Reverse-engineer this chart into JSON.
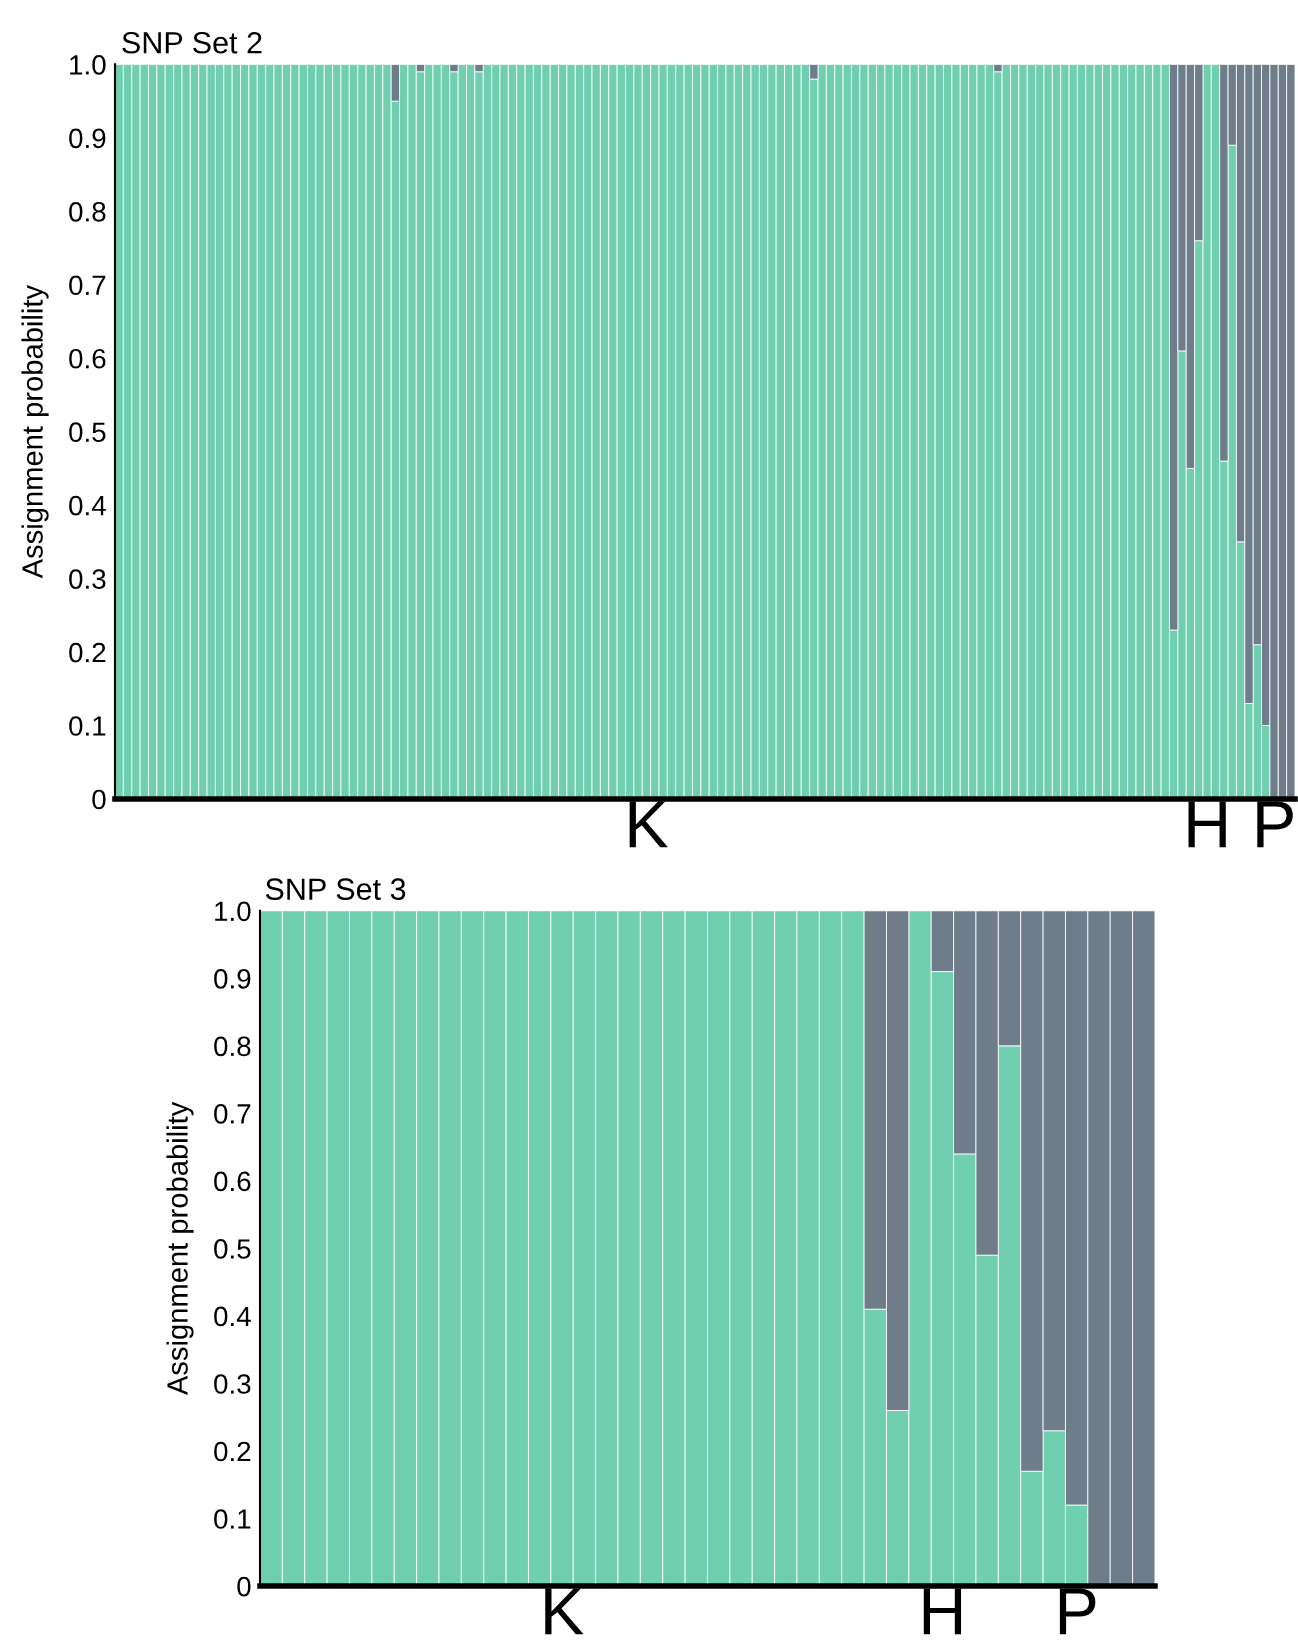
{
  "chart_data": [
    {
      "type": "bar",
      "title": "SNP Set 2",
      "ylabel": "Assignment probability",
      "stacked": true,
      "categories": [
        null,
        null,
        null,
        null,
        null,
        null,
        null,
        null,
        null,
        null,
        null,
        null,
        null,
        null,
        null,
        null,
        null,
        null,
        null,
        null,
        null,
        null,
        null,
        null,
        null,
        null,
        null,
        null,
        null,
        null,
        null,
        null,
        null,
        null,
        null,
        null,
        null,
        null,
        null,
        null,
        null,
        null,
        null,
        null,
        null,
        null,
        null,
        null,
        null,
        null,
        null,
        null,
        null,
        null,
        null,
        null,
        null,
        null,
        null,
        null,
        null,
        null,
        null,
        "K",
        null,
        null,
        null,
        null,
        null,
        null,
        null,
        null,
        null,
        null,
        null,
        null,
        null,
        null,
        null,
        null,
        null,
        null,
        null,
        null,
        null,
        null,
        null,
        null,
        null,
        null,
        null,
        null,
        null,
        null,
        null,
        null,
        null,
        null,
        null,
        null,
        null,
        null,
        null,
        null,
        null,
        null,
        null,
        null,
        null,
        null,
        null,
        null,
        null,
        null,
        null,
        null,
        null,
        null,
        null,
        null,
        null,
        null,
        null,
        null,
        null,
        null,
        null,
        null,
        null,
        null,
        "H",
        null,
        null,
        null,
        null,
        null,
        null,
        null,
        "P",
        null,
        null
      ],
      "series": [
        {
          "color": "#70cfae",
          "values": [
            1,
            1,
            1,
            1,
            1,
            1,
            1,
            1,
            1,
            1,
            1,
            1,
            1,
            1,
            1,
            1,
            1,
            1,
            1,
            1,
            1,
            1,
            1,
            1,
            1,
            1,
            1,
            1,
            1,
            1,
            1,
            1,
            1,
            0.95,
            1,
            1,
            0.99,
            1,
            1,
            1,
            0.99,
            1,
            1,
            0.99,
            1,
            1,
            1,
            1,
            1,
            1,
            1,
            1,
            1,
            1,
            1,
            1,
            1,
            1,
            1,
            1,
            1,
            1,
            1,
            1,
            1,
            1,
            1,
            1,
            1,
            1,
            1,
            1,
            1,
            1,
            1,
            1,
            1,
            1,
            1,
            1,
            1,
            1,
            1,
            0.98,
            1,
            1,
            1,
            1,
            1,
            1,
            1,
            1,
            1,
            1,
            1,
            1,
            1,
            1,
            1,
            1,
            1,
            1,
            1,
            1,
            1,
            0.99,
            1,
            1,
            1,
            1,
            1,
            1,
            1,
            1,
            1,
            1,
            1,
            1,
            1,
            1,
            1,
            1,
            1,
            1,
            1,
            1,
            0.23,
            0.61,
            0.45,
            0.76,
            1,
            1,
            0.46,
            0.89,
            0.35,
            0.13,
            0.21,
            0.1,
            0,
            0,
            0
          ]
        },
        {
          "color": "#6e7d89",
          "values": [
            0,
            0,
            0,
            0,
            0,
            0,
            0,
            0,
            0,
            0,
            0,
            0,
            0,
            0,
            0,
            0,
            0,
            0,
            0,
            0,
            0,
            0,
            0,
            0,
            0,
            0,
            0,
            0,
            0,
            0,
            0,
            0,
            0,
            0.05,
            0,
            0,
            0.01,
            0,
            0,
            0,
            0.01,
            0,
            0,
            0.01,
            0,
            0,
            0,
            0,
            0,
            0,
            0,
            0,
            0,
            0,
            0,
            0,
            0,
            0,
            0,
            0,
            0,
            0,
            0,
            0,
            0,
            0,
            0,
            0,
            0,
            0,
            0,
            0,
            0,
            0,
            0,
            0,
            0,
            0,
            0,
            0,
            0,
            0,
            0,
            0.02,
            0,
            0,
            0,
            0,
            0,
            0,
            0,
            0,
            0,
            0,
            0,
            0,
            0,
            0,
            0,
            0,
            0,
            0,
            0,
            0,
            0,
            0.01,
            0,
            0,
            0,
            0,
            0,
            0,
            0,
            0,
            0,
            0,
            0,
            0,
            0,
            0,
            0,
            0,
            0,
            0,
            0,
            0,
            0.77,
            0.39,
            0.55,
            0.24,
            0,
            0,
            0.54,
            0.11,
            0.65,
            0.87,
            0.79,
            0.9,
            1,
            1,
            1
          ]
        }
      ],
      "ylim": [
        0,
        1
      ],
      "yticks": [
        0,
        0.1,
        0.2,
        0.3,
        0.4,
        0.5,
        0.6,
        0.7,
        0.8,
        0.9,
        {
          "value": 1,
          "label": "1.0"
        }
      ]
    },
    {
      "type": "bar",
      "title": "SNP Set 3",
      "ylabel": "Assignment probability",
      "stacked": true,
      "categories": [
        null,
        null,
        null,
        null,
        null,
        null,
        null,
        null,
        null,
        null,
        null,
        null,
        null,
        "K",
        null,
        null,
        null,
        null,
        null,
        null,
        null,
        null,
        null,
        null,
        null,
        null,
        null,
        null,
        null,
        null,
        "H",
        null,
        null,
        null,
        null,
        null,
        "P",
        null,
        null,
        null
      ],
      "series": [
        {
          "color": "#70cfae",
          "values": [
            1,
            1,
            1,
            1,
            1,
            1,
            1,
            1,
            1,
            1,
            1,
            1,
            1,
            1,
            1,
            1,
            1,
            1,
            1,
            1,
            1,
            1,
            1,
            1,
            1,
            1,
            1,
            0.41,
            0.26,
            1,
            0.91,
            0.64,
            0.49,
            0.8,
            0.17,
            0.23,
            0.12,
            0,
            0,
            0
          ]
        },
        {
          "color": "#6e7d89",
          "values": [
            0,
            0,
            0,
            0,
            0,
            0,
            0,
            0,
            0,
            0,
            0,
            0,
            0,
            0,
            0,
            0,
            0,
            0,
            0,
            0,
            0,
            0,
            0,
            0,
            0,
            0,
            0,
            0.59,
            0.74,
            0,
            0.09,
            0.36,
            0.51,
            0.2,
            0.83,
            0.77,
            0.88,
            1,
            1,
            1
          ]
        }
      ],
      "ylim": [
        0,
        1
      ],
      "yticks": [
        0,
        0.1,
        0.2,
        0.3,
        0.4,
        0.5,
        0.6,
        0.7,
        0.8,
        0.9,
        {
          "value": 1,
          "label": "1.0"
        }
      ]
    }
  ]
}
